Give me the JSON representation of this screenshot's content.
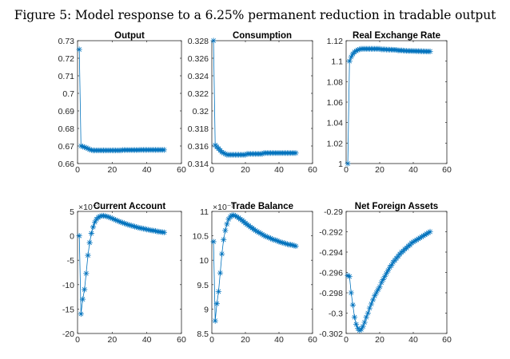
{
  "figure_title": "Figure 5: Model response to a 6.25% permanent reduction in tradable output",
  "colors": {
    "series": "#0072BD",
    "axis": "#262626"
  },
  "chart_data": [
    {
      "type": "line",
      "title": "Output",
      "marker": "asterisk",
      "x_start": 1,
      "xlim": [
        0,
        60
      ],
      "xticks": [
        "0",
        "20",
        "40",
        "60"
      ],
      "ylim": [
        0.66,
        0.73
      ],
      "yticks": [
        "0.66",
        "0.67",
        "0.68",
        "0.69",
        "0.7",
        "0.71",
        "0.72",
        "0.73"
      ],
      "multiplier": "",
      "values": [
        0.725,
        0.67,
        0.6697,
        0.6693,
        0.669,
        0.6685,
        0.668,
        0.6677,
        0.6675,
        0.6675,
        0.6675,
        0.6675,
        0.6675,
        0.6675,
        0.6675,
        0.6675,
        0.6675,
        0.6675,
        0.6675,
        0.6675,
        0.6675,
        0.6675,
        0.6675,
        0.6675,
        0.6675,
        0.6677,
        0.6677,
        0.6677,
        0.6677,
        0.6677,
        0.6677,
        0.6677,
        0.6677,
        0.6677,
        0.6677,
        0.6678,
        0.6678,
        0.6678,
        0.6678,
        0.6678,
        0.6678,
        0.6678,
        0.6678,
        0.6678,
        0.6678,
        0.6678,
        0.6678,
        0.6678,
        0.6678,
        0.6678
      ]
    },
    {
      "type": "line",
      "title": "Consumption",
      "marker": "asterisk",
      "x_start": 1,
      "xlim": [
        0,
        60
      ],
      "xticks": [
        "0",
        "20",
        "40",
        "60"
      ],
      "ylim": [
        0.314,
        0.328
      ],
      "yticks": [
        "0.314",
        "0.316",
        "0.318",
        "0.32",
        "0.322",
        "0.324",
        "0.326",
        "0.328"
      ],
      "multiplier": "",
      "values": [
        0.328,
        0.3161,
        0.3159,
        0.3157,
        0.3155,
        0.3153,
        0.3152,
        0.3151,
        0.315,
        0.315,
        0.315,
        0.315,
        0.315,
        0.315,
        0.315,
        0.315,
        0.315,
        0.315,
        0.315,
        0.315,
        0.3151,
        0.3151,
        0.3151,
        0.3151,
        0.3151,
        0.3151,
        0.3151,
        0.3151,
        0.3151,
        0.3151,
        0.3152,
        0.3152,
        0.3152,
        0.3152,
        0.3152,
        0.3152,
        0.3152,
        0.3152,
        0.3152,
        0.3152,
        0.3152,
        0.3152,
        0.3152,
        0.3152,
        0.3152,
        0.3152,
        0.3152,
        0.3152,
        0.3152,
        0.3152
      ]
    },
    {
      "type": "line",
      "title": "Real Exchange Rate",
      "marker": "asterisk",
      "x_start": 1,
      "xlim": [
        0,
        60
      ],
      "xticks": [
        "0",
        "20",
        "40",
        "60"
      ],
      "ylim": [
        1.0,
        1.12
      ],
      "yticks": [
        "1",
        "1.02",
        "1.04",
        "1.06",
        "1.08",
        "1.1",
        "1.12"
      ],
      "multiplier": "",
      "values": [
        1.0,
        1.1,
        1.104,
        1.107,
        1.109,
        1.11,
        1.111,
        1.1115,
        1.112,
        1.112,
        1.112,
        1.112,
        1.112,
        1.112,
        1.112,
        1.112,
        1.112,
        1.112,
        1.112,
        1.112,
        1.1115,
        1.1115,
        1.1115,
        1.1113,
        1.1113,
        1.1112,
        1.1112,
        1.1111,
        1.111,
        1.111,
        1.1105,
        1.1105,
        1.1105,
        1.1103,
        1.1102,
        1.1101,
        1.11,
        1.11,
        1.11,
        1.1099,
        1.1099,
        1.1098,
        1.1098,
        1.1097,
        1.1097,
        1.1096,
        1.1096,
        1.1095,
        1.1095,
        1.1095
      ]
    },
    {
      "type": "line",
      "title": "Current Account",
      "marker": "asterisk",
      "x_start": 1,
      "xlim": [
        0,
        60
      ],
      "xticks": [
        "0",
        "20",
        "40",
        "60"
      ],
      "ylim": [
        -20,
        5
      ],
      "yticks": [
        "-20",
        "-15",
        "-10",
        "-5",
        "0",
        "5"
      ],
      "multiplier": "×10⁻³",
      "values": [
        0,
        -16,
        -13,
        -11,
        -7.7,
        -4,
        -1.4,
        0.5,
        1.8,
        2.8,
        3.4,
        3.8,
        4.0,
        4.1,
        4.1,
        4.05,
        3.95,
        3.85,
        3.7,
        3.55,
        3.4,
        3.25,
        3.1,
        2.95,
        2.8,
        2.7,
        2.55,
        2.45,
        2.3,
        2.2,
        2.1,
        2.0,
        1.9,
        1.8,
        1.7,
        1.6,
        1.55,
        1.45,
        1.4,
        1.3,
        1.25,
        1.15,
        1.1,
        1.05,
        1.0,
        0.9,
        0.85,
        0.8,
        0.75,
        0.7
      ]
    },
    {
      "type": "line",
      "title": "Trade Balance",
      "marker": "asterisk",
      "x_start": 1,
      "xlim": [
        0,
        60
      ],
      "xticks": [
        "0",
        "20",
        "40",
        "60"
      ],
      "ylim": [
        8.5,
        11
      ],
      "yticks": [
        "8.5",
        "9",
        "9.5",
        "10",
        "10.5",
        "11"
      ],
      "multiplier": "×10⁻³",
      "values": [
        10.38,
        8.76,
        9.11,
        9.36,
        9.74,
        10.13,
        10.42,
        10.61,
        10.74,
        10.84,
        10.89,
        10.92,
        10.92,
        10.91,
        10.89,
        10.87,
        10.84,
        10.82,
        10.79,
        10.76,
        10.73,
        10.71,
        10.68,
        10.66,
        10.63,
        10.61,
        10.59,
        10.57,
        10.55,
        10.53,
        10.51,
        10.49,
        10.48,
        10.46,
        10.45,
        10.43,
        10.42,
        10.41,
        10.4,
        10.38,
        10.37,
        10.36,
        10.35,
        10.34,
        10.33,
        10.32,
        10.32,
        10.31,
        10.3,
        10.29
      ]
    },
    {
      "type": "line",
      "title": "Net Foreign Assets",
      "marker": "asterisk",
      "x_start": 1,
      "xlim": [
        0,
        60
      ],
      "xticks": [
        "0",
        "20",
        "40",
        "60"
      ],
      "ylim": [
        -0.302,
        -0.29
      ],
      "yticks": [
        "-0.302",
        "-0.3",
        "-0.298",
        "-0.296",
        "-0.294",
        "-0.292",
        "-0.29"
      ],
      "multiplier": "",
      "values": [
        -0.2963,
        -0.2964,
        -0.298,
        -0.2992,
        -0.3004,
        -0.3011,
        -0.3015,
        -0.3017,
        -0.3016,
        -0.3013,
        -0.3009,
        -0.3004,
        -0.3,
        -0.2995,
        -0.2991,
        -0.2987,
        -0.2983,
        -0.298,
        -0.2977,
        -0.2974,
        -0.297,
        -0.2967,
        -0.2964,
        -0.2961,
        -0.2958,
        -0.2955,
        -0.2953,
        -0.295,
        -0.2948,
        -0.2946,
        -0.2944,
        -0.2942,
        -0.294,
        -0.2939,
        -0.2937,
        -0.2936,
        -0.2934,
        -0.2933,
        -0.2931,
        -0.293,
        -0.2929,
        -0.2928,
        -0.2927,
        -0.2926,
        -0.2925,
        -0.2924,
        -0.2923,
        -0.2922,
        -0.2921,
        -0.292
      ]
    }
  ]
}
